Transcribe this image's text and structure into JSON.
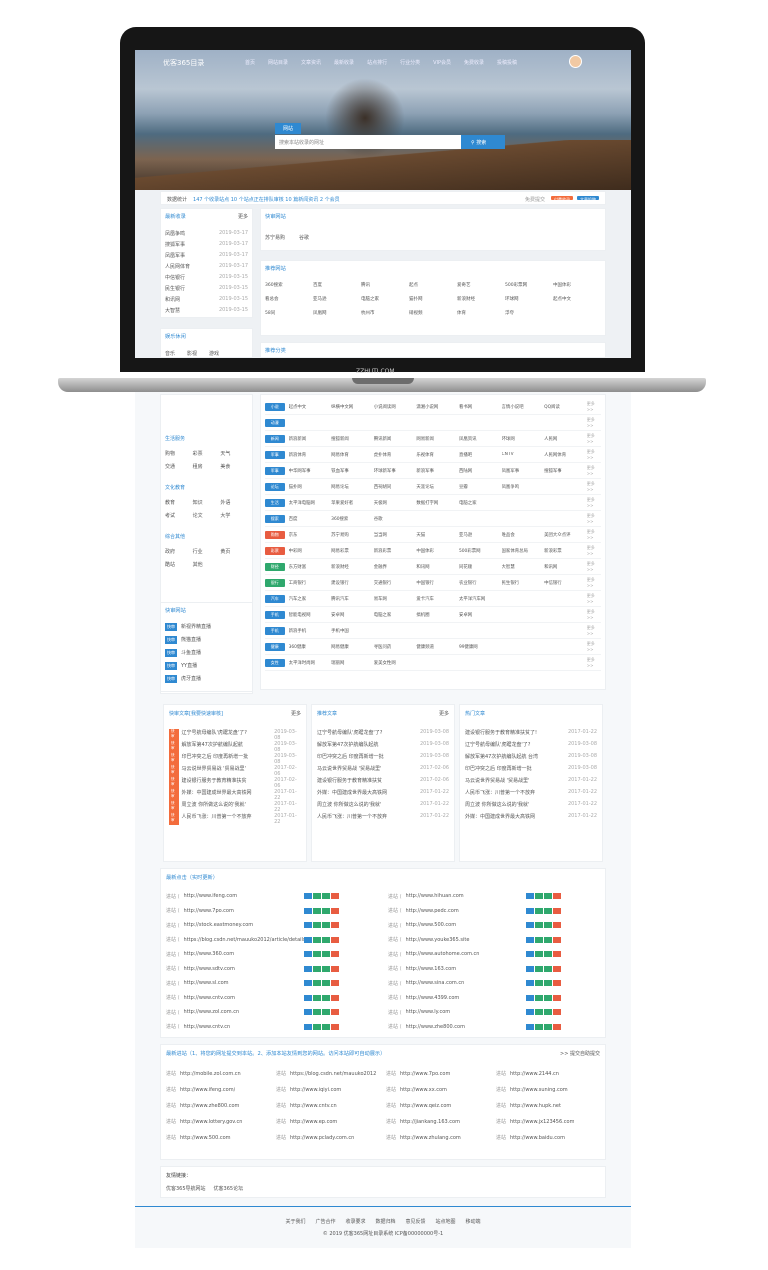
{
  "brand": "优客365目录",
  "nav": [
    "首页",
    "网站目录",
    "文章资讯",
    "最新收录",
    "站点排行",
    "行业分类",
    "VIP会员",
    "免费收录",
    "投稿投稿"
  ],
  "hero_tab": "网站",
  "search": {
    "placeholder": "搜索本站收录的网址",
    "button": "搜索"
  },
  "stats": {
    "label": "数据统计",
    "text": "147 个收录站点  10 个站点正在排队审核  10 篇新闻资讯  2 个会员",
    "free": "免费提交",
    "paid": "付费收录",
    "post": "文章投稿"
  },
  "recent": {
    "title": "最新收录",
    "more": "更多",
    "items": [
      [
        "凤凰争鸣",
        "2019-03-17"
      ],
      [
        "搜狐军事",
        "2019-03-17"
      ],
      [
        "凤凰军事",
        "2019-03-17"
      ],
      [
        "人民网体育",
        "2019-03-17"
      ],
      [
        "中信银行",
        "2019-03-15"
      ],
      [
        "民生银行",
        "2019-03-15"
      ],
      [
        "和讯网",
        "2019-03-15"
      ],
      [
        "大智慧",
        "2019-03-15"
      ]
    ]
  },
  "fast": {
    "title": "快审网站",
    "items": [
      "苏宁易购",
      "谷歌"
    ]
  },
  "recommend": {
    "title": "推荐网站",
    "items": [
      "360搜索",
      "百度",
      "腾讯",
      "起点",
      "爱奇艺",
      "500彩票网",
      "中国体彩",
      "看总会",
      "亚马逊",
      "电脑之家",
      "猫扑网",
      "新浪财经",
      "环球网",
      "起点中文",
      "58同",
      "凤凰网",
      "杭州市",
      "硝视频",
      "体育",
      "浮夸"
    ]
  },
  "cat_title": "推荐分类",
  "screen_label": "ZZHUTI.COM",
  "sidebar_cats": [
    {
      "title": "娱乐休闲",
      "items": [
        "音乐",
        "影视",
        "游戏",
        "小说",
        "动漫",
        "图片",
        "视频",
        "购物",
        "电视"
      ]
    },
    {
      "title": "生活服务",
      "items": [
        "购物",
        "彩票",
        "天气",
        "交通",
        "租房",
        "美食"
      ]
    },
    {
      "title": "文化教育",
      "items": [
        "教育",
        "知识",
        "外语",
        "考试",
        "论文",
        "大学"
      ]
    },
    {
      "title": "综合其他",
      "items": [
        "政府",
        "行业",
        "黄页",
        "酷站",
        "其他"
      ]
    }
  ],
  "fast_side": {
    "title": "快审网站",
    "items": [
      "新视界精直播",
      "熊猫直播",
      "斗鱼直播",
      "YY直播",
      "虎牙直播"
    ]
  },
  "dir_rows": [
    [
      "小说",
      "起点中文",
      "纵横中文网",
      "小说阅读网",
      "潇湘小说网",
      "看书网",
      "言情小说吧",
      "QQ阅读"
    ],
    [
      "动漫",
      "",
      "",
      "",
      "",
      "",
      "",
      ""
    ],
    [
      "新闻",
      "新浪新闻",
      "搜狐新闻",
      "腾讯新闻",
      "网易新闻",
      "凤凰资讯",
      "环球网",
      "人民网"
    ],
    [
      "军事",
      "新浪体育",
      "网易体育",
      "虎扑体育",
      "乐视体育",
      "直播吧",
      "CNTV",
      "人民网体育"
    ],
    [
      "军事",
      "中华网军事",
      "铁血军事",
      "环球新军事",
      "新浪军事",
      "西陆网",
      "凤凰军事",
      "搜狐军事"
    ],
    [
      "论坛",
      "猫扑网",
      "网易论坛",
      "西祠胡同",
      "天涯论坛",
      "豆瓣",
      "凤凰争鸣",
      ""
    ],
    [
      "生活",
      "太平洋电脑网",
      "苹果爱好者",
      "天极网",
      "数据打字网",
      "电脑之家",
      "",
      ""
    ],
    [
      "搜索",
      "百度",
      "360搜索",
      "谷歌",
      "",
      "",
      "",
      ""
    ],
    [
      "购物",
      "京东",
      "苏宁易购",
      "当当网",
      "天猫",
      "亚马逊",
      "唯品会",
      "美团大众点评"
    ],
    [
      "彩票",
      "中彩网",
      "网易彩票",
      "新浪彩票",
      "中国体彩",
      "500彩票网",
      "国家体育总局",
      "新浪彩票"
    ],
    [
      "财经",
      "东方财富",
      "新浪财经",
      "金融界",
      "和讯网",
      "同花顺",
      "大智慧",
      "和讯网"
    ],
    [
      "银行",
      "工商银行",
      "建设银行",
      "交通银行",
      "中国银行",
      "农业银行",
      "民生银行",
      "中信银行"
    ],
    [
      "汽车",
      "汽车之家",
      "腾讯汽车",
      "易车网",
      "爱卡汽车",
      "太平洋汽车网",
      "",
      ""
    ],
    [
      "手机",
      "智能电视网",
      "安卓网",
      "电脑之家",
      "搞机圈",
      "安卓网",
      "",
      ""
    ],
    [
      "手机",
      "新浪手机",
      "手机中国",
      "",
      "",
      "",
      "",
      ""
    ],
    [
      "健康",
      "360健康",
      "网易健康",
      "寻医问药",
      "健康频道",
      "99健康网",
      "",
      ""
    ],
    [
      "女性",
      "太平洋时尚网",
      "瑞丽网",
      "爱美女性网",
      "",
      "",
      "",
      ""
    ]
  ],
  "articles": [
    {
      "title": "快审文章[我要快速审核]",
      "more": "更多",
      "items": [
        [
          "辽宁号航母编队'虎踞龙盘'了?",
          "2019-03-08"
        ],
        [
          "解放军第47次护航编队起航",
          "2019-03-08"
        ],
        [
          "印巴冲突之后 印度再新增一批",
          "2019-03-08"
        ],
        [
          "马云说世界贸易战 '贸易战里'",
          "2017-02-06"
        ],
        [
          "建设银行服务于教育精准扶贫",
          "2017-02-06"
        ],
        [
          "外媒：中国建成世界最大高铁网",
          "2017-01-22"
        ],
        [
          "周立波 你所做这么说的'我就'",
          "2017-01-22"
        ],
        [
          "人民币飞涨：川普第一个不放弃",
          "2017-01-22"
        ]
      ]
    },
    {
      "title": "推荐文章",
      "more": "更多",
      "items": [
        [
          "辽宁号航母编队'虎踞龙盘'了?",
          "2019-03-08"
        ],
        [
          "解放军第47次护航编队起航",
          "2019-03-08"
        ],
        [
          "印巴冲突之后 印度再新增一批",
          "2019-03-08"
        ],
        [
          "马云说世界贸易战 '贸易战里'",
          "2017-02-06"
        ],
        [
          "建设银行服务于教育精准扶贫",
          "2017-02-06"
        ],
        [
          "外媒：中国建成世界最大高铁网",
          "2017-01-22"
        ],
        [
          "周立波 你所做这么说的'我就'",
          "2017-01-22"
        ],
        [
          "人民币飞涨：川普第一个不放弃",
          "2017-01-22"
        ]
      ]
    },
    {
      "title": "热门文章",
      "more": "",
      "items": [
        [
          "建设银行服务于教育精准扶贫了!",
          "2017-01-22"
        ],
        [
          "辽宁号航母编队'虎踞龙盘'了?",
          "2019-03-08"
        ],
        [
          "解放军第47次护航编队起航 台湾",
          "2019-03-08"
        ],
        [
          "印巴冲突之后 印度再新增一批",
          "2019-03-08"
        ],
        [
          "马云说世界贸易战 '贸易战里'",
          "2017-01-22"
        ],
        [
          "人民币飞涨：川普第一个不放弃",
          "2017-01-22"
        ],
        [
          "周立波 你所做这么说的'我就'",
          "2017-01-22"
        ],
        [
          "外媒：中国建成世界最大高铁网",
          "2017-01-22"
        ]
      ]
    }
  ],
  "clicks": {
    "title": "最新点击（实时更新）",
    "left": [
      "http://www.ifeng.com",
      "http://www.7po.com",
      "http://stock.eastmoney.com",
      "https://blog.csdn.net/mauuko2012/article/details",
      "http://www.360.com",
      "http://www.sdtv.com",
      "http://www.sl.com",
      "http://www.cntv.com",
      "http://www.zol.com.cn",
      "http://www.cntv.cn"
    ],
    "right": [
      "http://www.hihuan.com",
      "http://www.pedc.com",
      "http://www.500.com",
      "http://www.youke365.site",
      "http://www.autohome.com.cn",
      "http://www.163.com",
      "http://www.sina.com.cn",
      "http://www.4399.com",
      "http://www.ly.com",
      "http://www.zhe800.com"
    ]
  },
  "latest": {
    "title": "最新进站（1、将您的网址提交到本站。2、添加本站友情到您的网站。访问本站即可自动展示）",
    "submit": ">> 提交自助提交",
    "prefix": "进站",
    "items": [
      "http://mobile.zol.com.cn",
      "https://blog.csdn.net/mauuko2012",
      "http://www.7po.com",
      "http://www.2144.cn",
      "http://www.ifeng.com/",
      "http://www.iqiyi.com",
      "http://www.xx.com",
      "http://www.suning.com",
      "http://www.zhe800.com",
      "http://www.cntv.cn",
      "http://www.qeiz.com",
      "http://www.hupk.net",
      "http://www.lottery.gov.cn",
      "http://www.ep.com",
      "http://jiankang.163.com",
      "http://www.jx123456.com",
      "http://www.500.com",
      "http://www.pclady.com.cn",
      "http://www.zhulang.com",
      "http://www.baidu.com"
    ]
  },
  "friends": {
    "title": "友情链接：",
    "items": [
      "优客365导航网站",
      "优客365论坛"
    ]
  },
  "footer": {
    "links": [
      "关于我们",
      "广告合作",
      "收录要求",
      "数据归档",
      "意见反馈",
      "站点地图",
      "移动端"
    ],
    "copy": "© 2019 优客365网址目录系统 ICP备00000000号-1"
  }
}
